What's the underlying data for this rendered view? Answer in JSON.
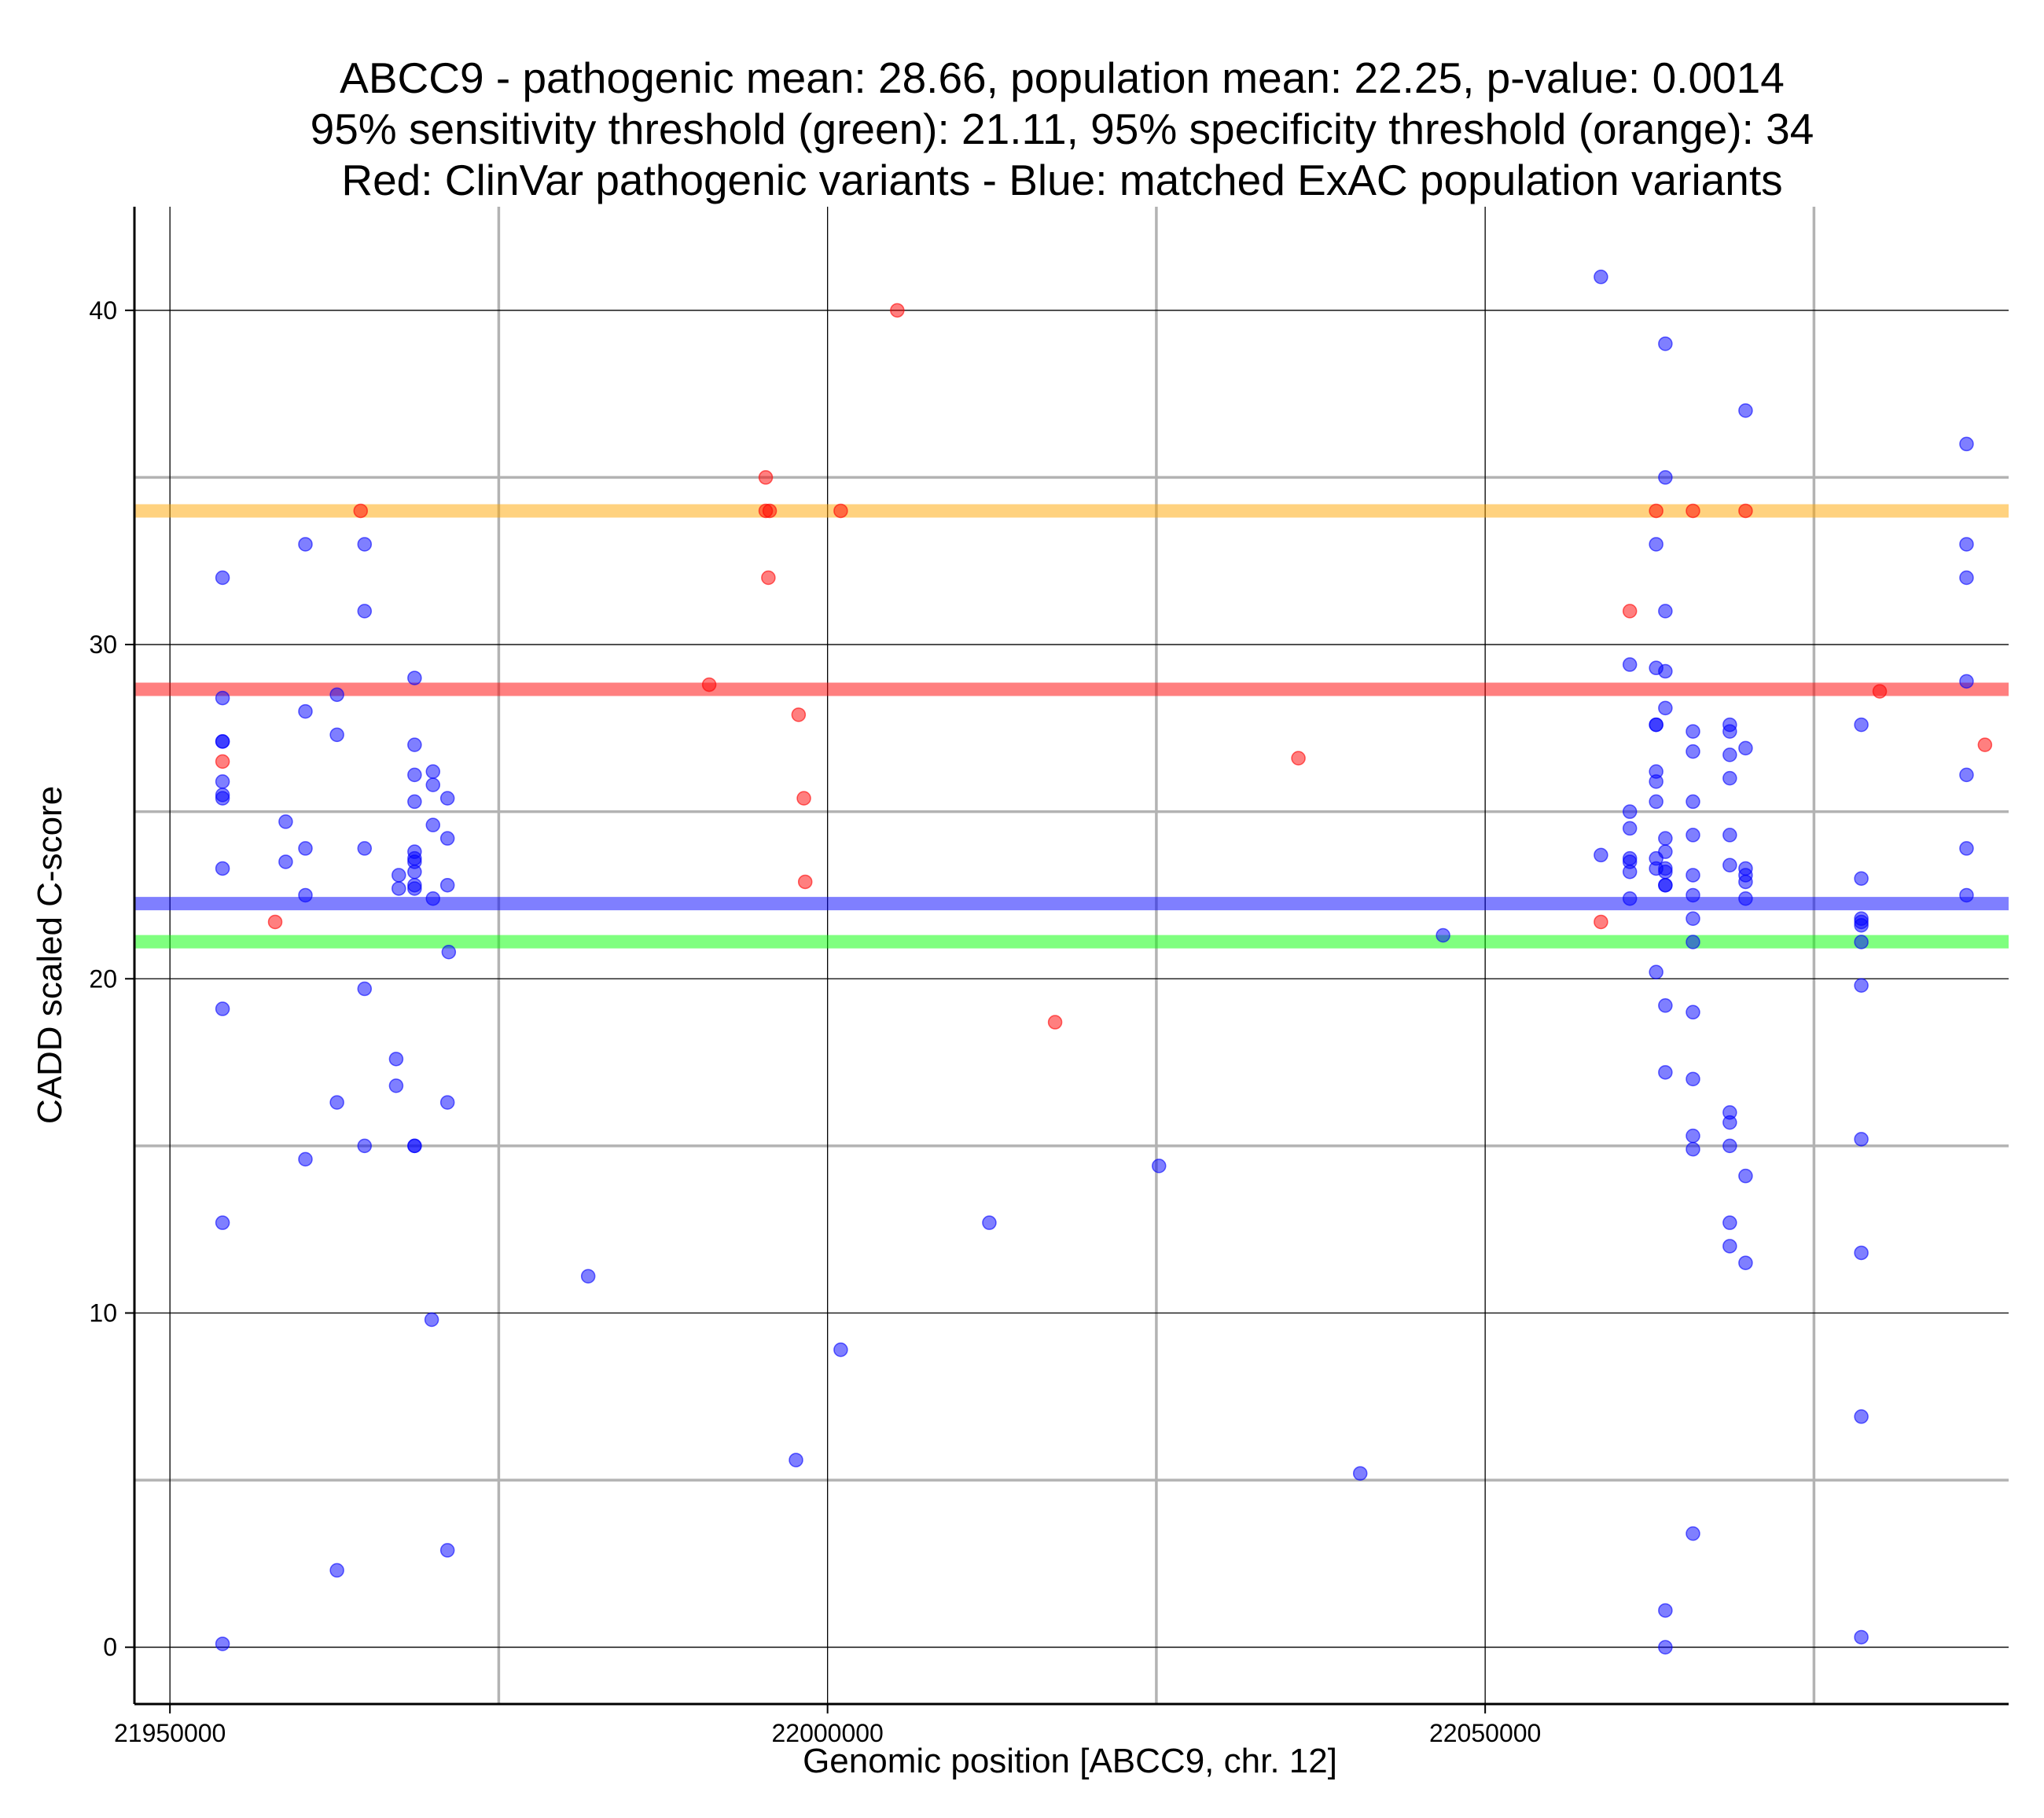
{
  "chart_data": {
    "type": "scatter",
    "title_lines": [
      "ABCC9 - pathogenic mean: 28.66, population mean: 22.25, p-value: 0.0014",
      "95% sensitivity threshold (green): 21.11, 95% specificity threshold (orange): 34",
      "Red: ClinVar pathogenic variants - Blue: matched ExAC population variants"
    ],
    "xlabel": "Genomic position [ABCC9, chr. 12]",
    "ylabel": "CADD scaled C-score",
    "xlim": [
      21947300,
      22089800
    ],
    "ylim": [
      -1.7,
      43.1
    ],
    "x_ticks": [
      21950000,
      22000000,
      22050000
    ],
    "x_tick_labels": [
      "21950000",
      "22000000",
      "22050000"
    ],
    "y_ticks": [
      0,
      10,
      20,
      30,
      40
    ],
    "y_tick_labels": [
      "0",
      "10",
      "20",
      "30",
      "40"
    ],
    "grid": true,
    "hlines": [
      {
        "name": "95% specificity threshold",
        "y": 34,
        "color": "#ffa500"
      },
      {
        "name": "pathogenic mean",
        "y": 28.66,
        "color": "#ff0000"
      },
      {
        "name": "population mean",
        "y": 22.25,
        "color": "#0000ff"
      },
      {
        "name": "95% sensitivity threshold",
        "y": 21.11,
        "color": "#00ff00"
      }
    ],
    "series": [
      {
        "color": "#ff0000",
        "points": [
          [
            21954000,
            26.5
          ],
          [
            21958000,
            21.7
          ],
          [
            21964500,
            34.0
          ],
          [
            21991000,
            28.8
          ],
          [
            21995300,
            35.0
          ],
          [
            21995300,
            34.0
          ],
          [
            21995600,
            34.0
          ],
          [
            21995500,
            32.0
          ],
          [
            21997800,
            27.9
          ],
          [
            21998200,
            25.4
          ],
          [
            21998300,
            22.9
          ],
          [
            22001000,
            34.0
          ],
          [
            22005300,
            40.0
          ],
          [
            22017300,
            18.7
          ],
          [
            22035800,
            26.6
          ],
          [
            22058800,
            21.7
          ],
          [
            22061000,
            31.0
          ],
          [
            22063000,
            34.0
          ],
          [
            22065800,
            34.0
          ],
          [
            22069800,
            34.0
          ],
          [
            22080000,
            28.6
          ],
          [
            22088000,
            27.0
          ]
        ]
      },
      {
        "color": "#0000ff",
        "points": [
          [
            21954000,
            32.0
          ],
          [
            21954000,
            28.4
          ],
          [
            21954000,
            27.1
          ],
          [
            21954000,
            27.1
          ],
          [
            21954000,
            25.9
          ],
          [
            21954000,
            25.5
          ],
          [
            21954000,
            25.4
          ],
          [
            21954000,
            23.3
          ],
          [
            21954000,
            19.1
          ],
          [
            21954000,
            12.7
          ],
          [
            21954000,
            0.1
          ],
          [
            21958800,
            24.7
          ],
          [
            21958800,
            23.5
          ],
          [
            21960300,
            33.0
          ],
          [
            21960300,
            28.0
          ],
          [
            21960300,
            23.9
          ],
          [
            21960300,
            22.5
          ],
          [
            21960300,
            14.6
          ],
          [
            21962700,
            28.5
          ],
          [
            21962700,
            27.3
          ],
          [
            21962700,
            16.3
          ],
          [
            21962700,
            2.3
          ],
          [
            21964800,
            33.0
          ],
          [
            21964800,
            31.0
          ],
          [
            21964800,
            23.9
          ],
          [
            21964800,
            19.7
          ],
          [
            21964800,
            15.0
          ],
          [
            21967400,
            23.1
          ],
          [
            21967400,
            22.7
          ],
          [
            21967200,
            17.6
          ],
          [
            21967200,
            16.8
          ],
          [
            21968600,
            29.0
          ],
          [
            21968600,
            27.0
          ],
          [
            21968600,
            26.1
          ],
          [
            21968600,
            25.3
          ],
          [
            21968600,
            23.8
          ],
          [
            21968600,
            23.6
          ],
          [
            21968600,
            23.5
          ],
          [
            21968600,
            23.2
          ],
          [
            21968600,
            22.8
          ],
          [
            21968600,
            22.7
          ],
          [
            21968600,
            15.0
          ],
          [
            21968600,
            15.0
          ],
          [
            21970000,
            26.2
          ],
          [
            21970000,
            25.8
          ],
          [
            21970000,
            24.6
          ],
          [
            21970000,
            22.4
          ],
          [
            21969900,
            9.8
          ],
          [
            21971100,
            25.4
          ],
          [
            21971100,
            24.2
          ],
          [
            21971100,
            22.8
          ],
          [
            21971200,
            20.8
          ],
          [
            21971100,
            16.3
          ],
          [
            21971100,
            2.9
          ],
          [
            21981800,
            11.1
          ],
          [
            21997600,
            5.6
          ],
          [
            22001000,
            8.9
          ],
          [
            22012300,
            12.7
          ],
          [
            22025200,
            14.4
          ],
          [
            22040500,
            5.2
          ],
          [
            22046800,
            21.3
          ],
          [
            22058800,
            41.0
          ],
          [
            22058800,
            23.7
          ],
          [
            22061000,
            29.4
          ],
          [
            22061000,
            25.0
          ],
          [
            22061000,
            24.5
          ],
          [
            22061000,
            23.6
          ],
          [
            22061000,
            23.5
          ],
          [
            22061000,
            23.2
          ],
          [
            22061000,
            22.4
          ],
          [
            22063000,
            33.0
          ],
          [
            22063000,
            29.3
          ],
          [
            22063000,
            27.6
          ],
          [
            22063000,
            27.6
          ],
          [
            22063000,
            26.2
          ],
          [
            22063000,
            25.9
          ],
          [
            22063000,
            25.3
          ],
          [
            22063000,
            23.6
          ],
          [
            22063000,
            23.3
          ],
          [
            22063000,
            20.2
          ],
          [
            22063700,
            39.0
          ],
          [
            22063700,
            35.0
          ],
          [
            22063700,
            31.0
          ],
          [
            22063700,
            29.2
          ],
          [
            22063700,
            28.1
          ],
          [
            22063700,
            24.2
          ],
          [
            22063700,
            23.8
          ],
          [
            22063700,
            23.3
          ],
          [
            22063700,
            23.2
          ],
          [
            22063700,
            22.8
          ],
          [
            22063700,
            22.8
          ],
          [
            22063700,
            19.2
          ],
          [
            22063700,
            17.2
          ],
          [
            22063700,
            1.1
          ],
          [
            22063700,
            0.0
          ],
          [
            22065800,
            27.4
          ],
          [
            22065800,
            26.8
          ],
          [
            22065800,
            25.3
          ],
          [
            22065800,
            24.3
          ],
          [
            22065800,
            23.1
          ],
          [
            22065800,
            22.5
          ],
          [
            22065800,
            21.8
          ],
          [
            22065800,
            21.1
          ],
          [
            22065800,
            19.0
          ],
          [
            22065800,
            17.0
          ],
          [
            22065800,
            15.3
          ],
          [
            22065800,
            14.9
          ],
          [
            22065800,
            3.4
          ],
          [
            22068600,
            27.6
          ],
          [
            22068600,
            27.4
          ],
          [
            22068600,
            26.7
          ],
          [
            22068600,
            26.0
          ],
          [
            22068600,
            24.3
          ],
          [
            22068600,
            23.4
          ],
          [
            22068600,
            16.0
          ],
          [
            22068600,
            15.7
          ],
          [
            22068600,
            15.0
          ],
          [
            22068600,
            12.7
          ],
          [
            22068600,
            12.0
          ],
          [
            22069800,
            37.0
          ],
          [
            22069800,
            26.9
          ],
          [
            22069800,
            23.3
          ],
          [
            22069800,
            23.1
          ],
          [
            22069800,
            22.9
          ],
          [
            22069800,
            22.4
          ],
          [
            22069800,
            14.1
          ],
          [
            22069800,
            11.5
          ],
          [
            22078600,
            27.6
          ],
          [
            22078600,
            23.0
          ],
          [
            22078600,
            21.8
          ],
          [
            22078600,
            21.7
          ],
          [
            22078600,
            21.6
          ],
          [
            22078600,
            21.1
          ],
          [
            22078600,
            19.8
          ],
          [
            22078600,
            15.2
          ],
          [
            22078600,
            11.8
          ],
          [
            22078600,
            6.9
          ],
          [
            22078600,
            0.3
          ],
          [
            22086600,
            36.0
          ],
          [
            22086600,
            33.0
          ],
          [
            22086600,
            32.0
          ],
          [
            22086600,
            28.9
          ],
          [
            22086600,
            26.1
          ],
          [
            22086600,
            23.9
          ],
          [
            22086600,
            22.5
          ]
        ]
      }
    ]
  }
}
